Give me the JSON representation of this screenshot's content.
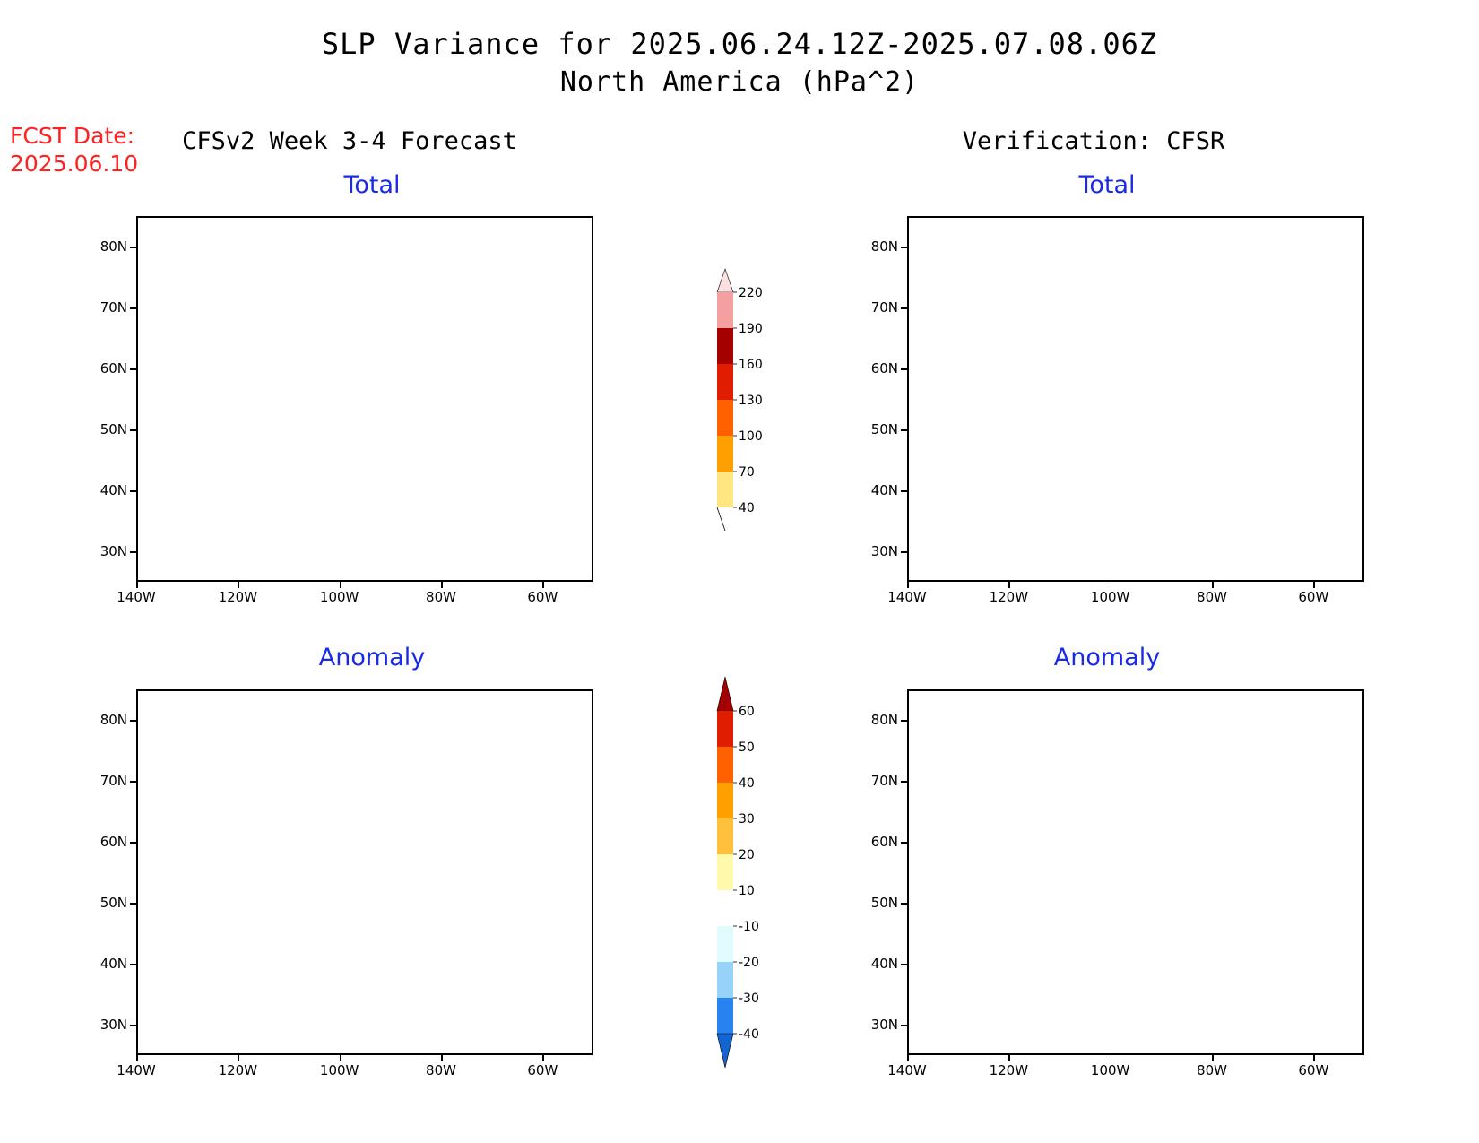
{
  "header": {
    "title": "SLP Variance for 2025.06.24.12Z-2025.07.08.06Z",
    "subtitle": "North America (hPa^2)",
    "fcst_label": "FCST Date:",
    "fcst_date": "2025.06.10"
  },
  "columns": {
    "left": "CFSv2 Week 3-4 Forecast",
    "right": "Verification: CFSR"
  },
  "panels": [
    {
      "id": "fcst-total",
      "title": "Total"
    },
    {
      "id": "verif-total",
      "title": "Total"
    },
    {
      "id": "fcst-anomaly",
      "title": "Anomaly"
    },
    {
      "id": "verif-anomaly",
      "title": "Anomaly"
    }
  ],
  "axes": {
    "lat_labels": [
      "80N",
      "70N",
      "60N",
      "50N",
      "40N",
      "30N"
    ],
    "lon_labels": [
      "140W",
      "120W",
      "100W",
      "80W",
      "60W"
    ],
    "lat_values": [
      80,
      70,
      60,
      50,
      40,
      30
    ],
    "lon_values": [
      -140,
      -120,
      -100,
      -80,
      -60
    ],
    "lat_range": [
      25,
      85
    ],
    "lon_range": [
      -140,
      -50
    ]
  },
  "colorbar_total": {
    "labels": [
      "40",
      "70",
      "100",
      "130",
      "160",
      "190",
      "220"
    ],
    "colors": [
      "#ffe680",
      "#ffa000",
      "#ff6000",
      "#e11d00",
      "#a50000",
      "#f4a0a0",
      "#fce0e0"
    ]
  },
  "colorbar_anomaly": {
    "labels": [
      "-40",
      "-30",
      "-20",
      "-10",
      "10",
      "20",
      "30",
      "40",
      "50",
      "60"
    ],
    "colors": [
      "#1464d2",
      "#2882f0",
      "#96d2fa",
      "#e1fcff",
      "#ffffff",
      "#fffaaa",
      "#ffc03c",
      "#ffa000",
      "#ff6000",
      "#e11d00",
      "#a50000"
    ]
  }
}
